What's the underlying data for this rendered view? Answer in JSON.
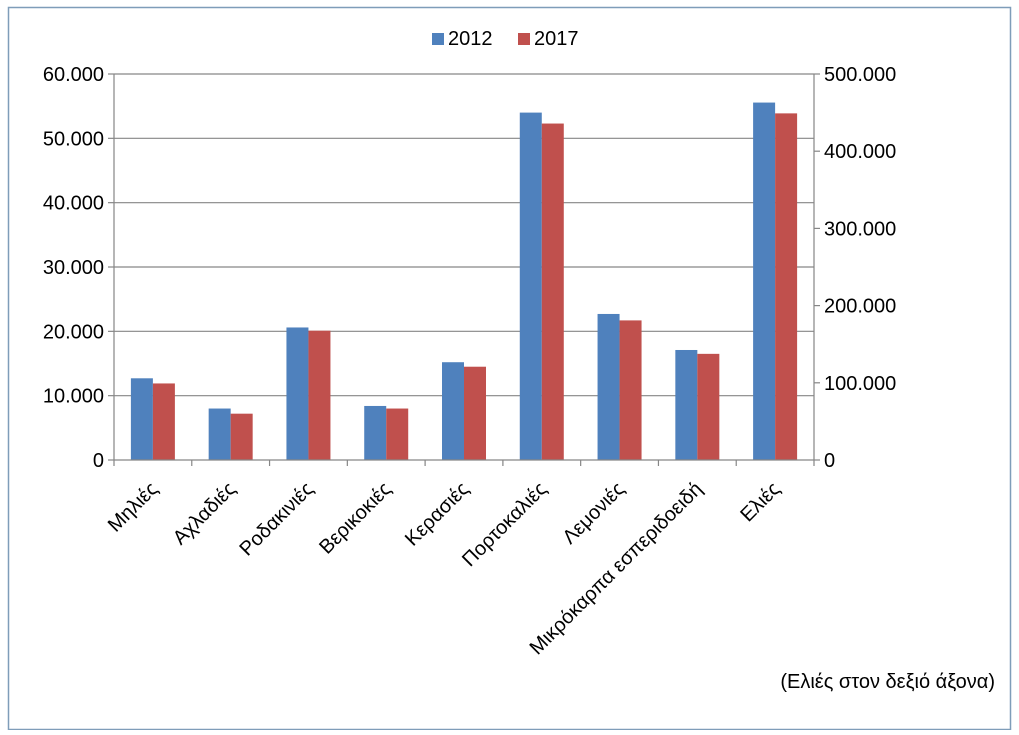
{
  "chart_data": {
    "type": "bar",
    "categories": [
      "Μηλιές",
      "Αχλαδιές",
      "Ροδακινιές",
      "Βερικοκιές",
      "Κερασιές",
      "Πορτοκαλιές",
      "Λεμονιές",
      "Μικρόκαρπα εσπεριδοειδή",
      "Ελιές"
    ],
    "series": [
      {
        "name": "2012",
        "color": "#4F81BD",
        "values": [
          12700,
          8000,
          20600,
          8400,
          15200,
          54000,
          22700,
          17100,
          463000
        ]
      },
      {
        "name": "2017",
        "color": "#C0504D",
        "values": [
          11900,
          7200,
          20100,
          8000,
          14500,
          52300,
          21700,
          16500,
          449000
        ]
      }
    ],
    "right_axis_categories": [
      "Ελιές"
    ],
    "y_left": {
      "lim": [
        0,
        60000
      ],
      "ticks": [
        0,
        10000,
        20000,
        30000,
        40000,
        50000,
        60000
      ],
      "tick_labels": [
        "0",
        "10.000",
        "20.000",
        "30.000",
        "40.000",
        "50.000",
        "60.000"
      ]
    },
    "y_right": {
      "lim": [
        0,
        500000
      ],
      "ticks": [
        0,
        100000,
        200000,
        300000,
        400000,
        500000
      ],
      "tick_labels": [
        "0",
        "100.000",
        "200.000",
        "300.000",
        "400.000",
        "500.000"
      ]
    },
    "grid": true,
    "legend_position": "top-center",
    "annotation": "(Ελιές  στον δεξιό άξονα)"
  }
}
